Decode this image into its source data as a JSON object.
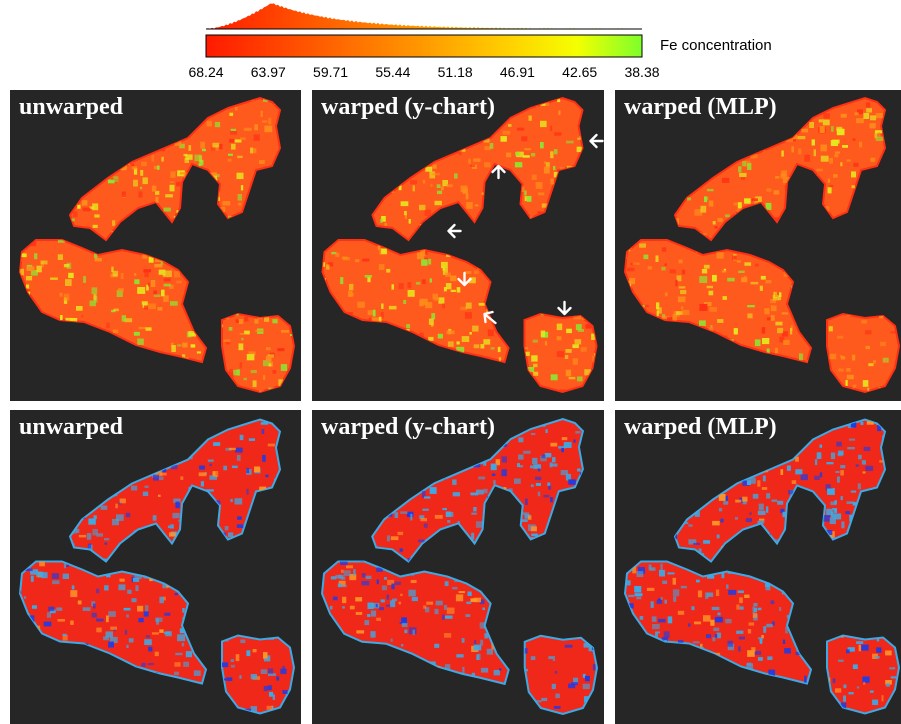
{
  "colorbar": {
    "title": "Fe concentration",
    "ticks": [
      "68.24",
      "63.97",
      "59.71",
      "55.44",
      "51.18",
      "46.91",
      "42.65",
      "38.38"
    ],
    "colors": [
      "#ff1a00",
      "#ff5a00",
      "#ff9a00",
      "#ffd200",
      "#f5ff00",
      "#7dff2a"
    ]
  },
  "panels": [
    {
      "label": "unwarped",
      "row": 0,
      "col": 0,
      "scheme": "fe"
    },
    {
      "label": "warped (y-chart)",
      "row": 0,
      "col": 1,
      "scheme": "fe"
    },
    {
      "label": "warped (MLP)",
      "row": 0,
      "col": 2,
      "scheme": "fe"
    },
    {
      "label": "unwarped",
      "row": 1,
      "col": 0,
      "scheme": "diff"
    },
    {
      "label": "warped (y-chart)",
      "row": 1,
      "col": 1,
      "scheme": "diff"
    },
    {
      "label": "warped (MLP)",
      "row": 1,
      "col": 2,
      "scheme": "diff"
    }
  ],
  "colors": {
    "background": "#262626",
    "fe_main": "#ff5a1e",
    "fe_high": "#ff3014",
    "fe_mid": "#ff8c1a",
    "fe_low": "#e6e61e",
    "fe_green": "#8ce632",
    "diff_main": "#f0281a",
    "diff_blue": "#1e3ce6",
    "diff_cyan": "#3caae6",
    "diff_orange": "#ff9628",
    "arrow": "#ffffff"
  }
}
